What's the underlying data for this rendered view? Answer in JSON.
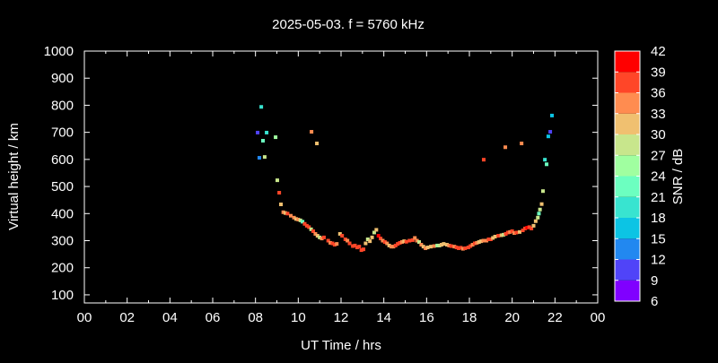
{
  "chart_data": {
    "type": "scatter",
    "title": "2025-05-03. f = 5760 kHz",
    "xlabel": "UT Time / hrs",
    "ylabel": "Virtual height / km",
    "xlim": [
      0,
      24
    ],
    "ylim": [
      70,
      1000
    ],
    "xticks": [
      "00",
      "02",
      "04",
      "06",
      "08",
      "10",
      "12",
      "14",
      "16",
      "18",
      "20",
      "22",
      "00"
    ],
    "yticks": [
      100,
      200,
      300,
      400,
      500,
      600,
      700,
      800,
      900,
      1000
    ],
    "grid": false,
    "colorbar": {
      "label": "SNR / dB",
      "range": [
        6,
        42
      ],
      "ticks": [
        6,
        9,
        12,
        15,
        18,
        21,
        24,
        27,
        30,
        33,
        36,
        39,
        42
      ],
      "colors": [
        "#8000ff",
        "#5044f8",
        "#2288f0",
        "#0cc4e4",
        "#38e4d0",
        "#6cffc0",
        "#a0ffa0",
        "#c8e68c",
        "#f0c070",
        "#ff8c50",
        "#ff4628",
        "#ff0000"
      ]
    },
    "point_fields": [
      "time_hrs",
      "height_km",
      "snr_db"
    ],
    "points": [
      [
        8.27,
        794,
        19
      ],
      [
        8.1,
        699,
        10
      ],
      [
        8.52,
        699,
        19
      ],
      [
        8.94,
        682,
        25
      ],
      [
        8.35,
        669,
        22
      ],
      [
        8.18,
        606,
        13
      ],
      [
        8.43,
        609,
        28
      ],
      [
        10.62,
        702,
        34
      ],
      [
        10.87,
        659,
        31
      ],
      [
        9.02,
        523,
        28
      ],
      [
        9.11,
        477,
        38
      ],
      [
        9.19,
        434,
        31
      ],
      [
        9.3,
        405,
        35
      ],
      [
        9.4,
        402,
        32
      ],
      [
        9.5,
        400,
        36
      ],
      [
        9.65,
        392,
        34
      ],
      [
        9.8,
        385,
        34
      ],
      [
        9.9,
        380,
        32
      ],
      [
        10.0,
        378,
        34
      ],
      [
        10.1,
        375,
        27
      ],
      [
        10.2,
        370,
        21
      ],
      [
        10.3,
        362,
        37
      ],
      [
        10.4,
        355,
        36
      ],
      [
        10.5,
        350,
        38
      ],
      [
        10.6,
        342,
        28
      ],
      [
        10.7,
        335,
        37
      ],
      [
        10.8,
        325,
        33
      ],
      [
        10.9,
        318,
        31
      ],
      [
        11.0,
        312,
        27
      ],
      [
        11.1,
        308,
        33
      ],
      [
        11.2,
        312,
        36
      ],
      [
        11.4,
        300,
        38
      ],
      [
        11.5,
        292,
        33
      ],
      [
        11.6,
        290,
        36
      ],
      [
        11.7,
        285,
        38
      ],
      [
        11.8,
        288,
        33
      ],
      [
        11.95,
        325,
        31
      ],
      [
        12.05,
        318,
        36
      ],
      [
        12.2,
        305,
        38
      ],
      [
        12.3,
        300,
        34
      ],
      [
        12.4,
        290,
        36
      ],
      [
        12.55,
        280,
        37
      ],
      [
        12.65,
        282,
        38
      ],
      [
        12.75,
        275,
        37
      ],
      [
        12.85,
        278,
        38
      ],
      [
        12.95,
        265,
        37
      ],
      [
        13.05,
        268,
        36
      ],
      [
        13.15,
        290,
        30
      ],
      [
        13.25,
        305,
        28
      ],
      [
        13.35,
        298,
        31
      ],
      [
        13.45,
        312,
        31
      ],
      [
        13.55,
        330,
        27
      ],
      [
        13.65,
        340,
        31
      ],
      [
        13.75,
        318,
        40
      ],
      [
        13.85,
        308,
        37
      ],
      [
        13.95,
        300,
        35
      ],
      [
        14.05,
        295,
        36
      ],
      [
        14.15,
        290,
        34
      ],
      [
        14.25,
        282,
        30
      ],
      [
        14.35,
        278,
        33
      ],
      [
        14.45,
        278,
        34
      ],
      [
        14.55,
        282,
        37
      ],
      [
        14.65,
        288,
        38
      ],
      [
        14.75,
        292,
        36
      ],
      [
        14.85,
        295,
        33
      ],
      [
        14.95,
        298,
        31
      ],
      [
        15.05,
        296,
        36
      ],
      [
        15.2,
        300,
        38
      ],
      [
        15.35,
        302,
        37
      ],
      [
        15.45,
        310,
        34
      ],
      [
        15.55,
        300,
        34
      ],
      [
        15.65,
        295,
        27
      ],
      [
        15.75,
        285,
        33
      ],
      [
        15.85,
        278,
        31
      ],
      [
        15.95,
        272,
        33
      ],
      [
        16.05,
        275,
        31
      ],
      [
        16.2,
        278,
        31
      ],
      [
        16.35,
        280,
        33
      ],
      [
        16.5,
        282,
        24
      ],
      [
        16.6,
        282,
        27
      ],
      [
        16.7,
        285,
        31
      ],
      [
        16.8,
        288,
        31
      ],
      [
        16.95,
        285,
        30
      ],
      [
        17.05,
        282,
        33
      ],
      [
        17.15,
        280,
        36
      ],
      [
        17.3,
        278,
        33
      ],
      [
        17.4,
        275,
        36
      ],
      [
        17.5,
        272,
        38
      ],
      [
        17.6,
        274,
        37
      ],
      [
        17.7,
        270,
        33
      ],
      [
        17.8,
        272,
        36
      ],
      [
        17.95,
        275,
        37
      ],
      [
        18.05,
        280,
        36
      ],
      [
        18.15,
        285,
        34
      ],
      [
        18.25,
        290,
        37
      ],
      [
        18.35,
        292,
        34
      ],
      [
        18.45,
        295,
        31
      ],
      [
        18.55,
        298,
        31
      ],
      [
        18.65,
        300,
        33
      ],
      [
        18.8,
        300,
        33
      ],
      [
        18.9,
        305,
        36
      ],
      [
        19.0,
        305,
        36
      ],
      [
        19.1,
        310,
        31
      ],
      [
        19.2,
        315,
        31
      ],
      [
        19.35,
        318,
        37
      ],
      [
        19.5,
        320,
        31
      ],
      [
        19.6,
        322,
        28
      ],
      [
        19.7,
        325,
        37
      ],
      [
        19.8,
        330,
        38
      ],
      [
        19.9,
        332,
        34
      ],
      [
        20.0,
        335,
        36
      ],
      [
        20.1,
        328,
        34
      ],
      [
        20.2,
        330,
        36
      ],
      [
        20.35,
        332,
        31
      ],
      [
        20.5,
        338,
        37
      ],
      [
        20.6,
        345,
        38
      ],
      [
        20.7,
        348,
        40
      ],
      [
        20.8,
        350,
        36
      ],
      [
        20.9,
        345,
        38
      ],
      [
        21.0,
        355,
        31
      ],
      [
        21.1,
        372,
        31
      ],
      [
        21.2,
        385,
        28
      ],
      [
        21.25,
        400,
        22
      ],
      [
        21.3,
        415,
        27
      ],
      [
        21.38,
        435,
        30
      ],
      [
        18.67,
        599,
        37
      ],
      [
        19.68,
        645,
        34
      ],
      [
        20.44,
        659,
        34
      ],
      [
        21.86,
        762,
        15
      ],
      [
        21.78,
        702,
        10
      ],
      [
        21.69,
        685,
        15
      ],
      [
        21.53,
        599,
        19
      ],
      [
        21.61,
        582,
        22
      ],
      [
        21.44,
        483,
        28
      ]
    ]
  }
}
